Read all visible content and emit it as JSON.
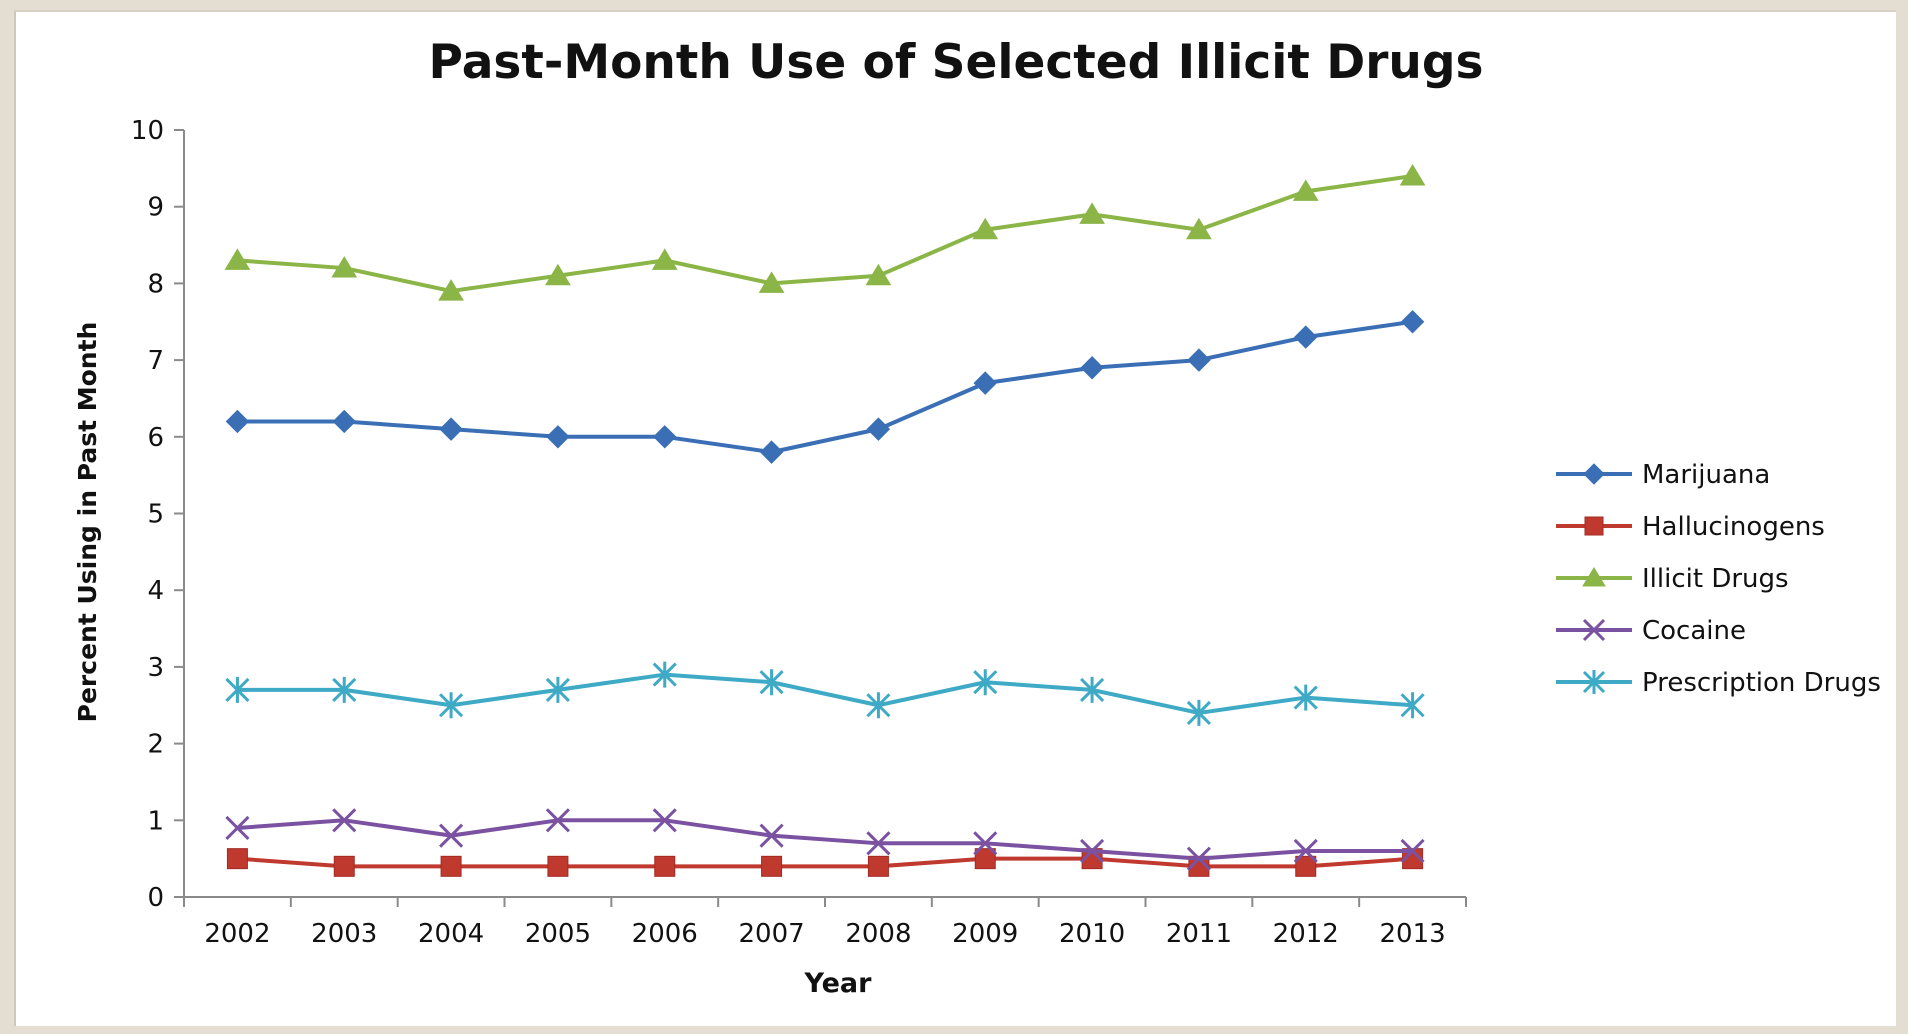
{
  "chart_data": {
    "type": "line",
    "title": "Past-Month Use of Selected Illicit Drugs",
    "xlabel": "Year",
    "ylabel": "Percent Using in Past Month",
    "categories": [
      "2002",
      "2003",
      "2004",
      "2005",
      "2006",
      "2007",
      "2008",
      "2009",
      "2010",
      "2011",
      "2012",
      "2013"
    ],
    "yticks": [
      "0",
      "1",
      "2",
      "3",
      "4",
      "5",
      "6",
      "7",
      "8",
      "9",
      "10"
    ],
    "ylim": [
      0,
      10
    ],
    "grid": false,
    "legend_position": "right",
    "series": [
      {
        "name": "Marijuana",
        "color": "#3a6fb6",
        "marker": "diamond",
        "values": [
          6.2,
          6.2,
          6.1,
          6.0,
          6.0,
          5.8,
          6.1,
          6.7,
          6.9,
          7.0,
          7.3,
          7.5
        ]
      },
      {
        "name": "Hallucinogens",
        "color": "#c0392f",
        "marker": "square",
        "values": [
          0.5,
          0.4,
          0.4,
          0.4,
          0.4,
          0.4,
          0.4,
          0.5,
          0.5,
          0.4,
          0.4,
          0.5
        ]
      },
      {
        "name": "Illicit Drugs",
        "color": "#8bb547",
        "marker": "triangle",
        "values": [
          8.3,
          8.2,
          7.9,
          8.1,
          8.3,
          8.0,
          8.1,
          8.7,
          8.9,
          8.7,
          9.2,
          9.4
        ]
      },
      {
        "name": "Cocaine",
        "color": "#7a52a1",
        "marker": "x",
        "values": [
          0.9,
          1.0,
          0.8,
          1.0,
          1.0,
          0.8,
          0.7,
          0.7,
          0.6,
          0.5,
          0.6,
          0.6
        ]
      },
      {
        "name": "Prescription Drugs",
        "color": "#3eaac6",
        "marker": "star",
        "values": [
          2.7,
          2.7,
          2.5,
          2.7,
          2.9,
          2.8,
          2.5,
          2.8,
          2.7,
          2.4,
          2.6,
          2.5
        ]
      }
    ]
  }
}
